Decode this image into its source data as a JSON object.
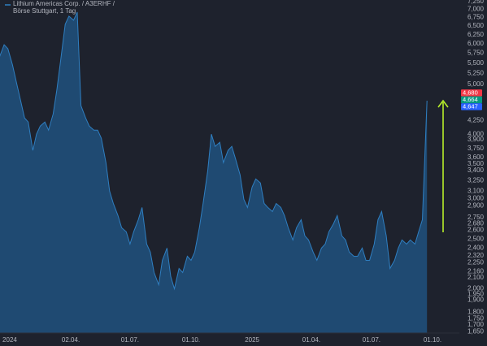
{
  "chart_data": {
    "type": "area",
    "title": "Lithium Americas Corp. / A3ERHF /",
    "subtitle": "Börse Stuttgart, 1 Tag",
    "log_scale": true,
    "grid": false,
    "color": "#2f7fc1",
    "fill_color": "#1f4a72",
    "x": [
      -11,
      -6,
      -2,
      3,
      7,
      11,
      16,
      20,
      25,
      29,
      33,
      38,
      42,
      47,
      51,
      55,
      60,
      64,
      69,
      73,
      77,
      82,
      86,
      91,
      95,
      99,
      104,
      108,
      112,
      117,
      121,
      126,
      130,
      134,
      139,
      143,
      148,
      152,
      156,
      161,
      165,
      170,
      174,
      178,
      183,
      187,
      192,
      196,
      200,
      205,
      209,
      214,
      218,
      222,
      227,
      231,
      236,
      240,
      244,
      249,
      253,
      257,
      262,
      266,
      271,
      275,
      279,
      284,
      288,
      293,
      297,
      301,
      306,
      310,
      315,
      319,
      323,
      328,
      332,
      337,
      341,
      345,
      350,
      354,
      359,
      363,
      367,
      372,
      376,
      381,
      385,
      389,
      394,
      398,
      402,
      407,
      411,
      416,
      420,
      424,
      429,
      433,
      438,
      442,
      446,
      451
    ],
    "values": [
      5656,
      5975,
      5867,
      5454,
      5070,
      4713,
      4302,
      4225,
      3719,
      4000,
      4148,
      4225,
      4073,
      4381,
      4889,
      5554,
      6546,
      6789,
      6666,
      6914,
      4544,
      4302,
      4148,
      4073,
      4073,
      3928,
      3521,
      3099,
      2932,
      2777,
      2629,
      2582,
      2444,
      2582,
      2726,
      2880,
      2444,
      2357,
      2151,
      2037,
      2272,
      2400,
      2113,
      2000,
      2191,
      2151,
      2314,
      2272,
      2357,
      2629,
      2932,
      3395,
      4000,
      3787,
      3857,
      3521,
      3719,
      3787,
      3586,
      3334,
      2988,
      2880,
      3156,
      3273,
      3214,
      2932,
      2880,
      2828,
      2932,
      2880,
      2777,
      2629,
      2489,
      2629,
      2726,
      2535,
      2489,
      2357,
      2272,
      2400,
      2444,
      2582,
      2677,
      2777,
      2535,
      2489,
      2357,
      2314,
      2314,
      2400,
      2272,
      2272,
      2444,
      2726,
      2828,
      2535,
      2191,
      2272,
      2400,
      2489,
      2444,
      2489,
      2444,
      2582,
      2726,
      4647
    ],
    "xlim": [
      -10.5,
      486
    ],
    "xticks": [
      {
        "value": 0,
        "label": "2024"
      },
      {
        "value": 66,
        "label": "02.04."
      },
      {
        "value": 130,
        "label": "01.07."
      },
      {
        "value": 196,
        "label": "01.10."
      },
      {
        "value": 262,
        "label": "2025"
      },
      {
        "value": 326,
        "label": "01.04."
      },
      {
        "value": 391,
        "label": "01.07."
      },
      {
        "value": 457,
        "label": "01.10."
      }
    ],
    "ylim": [
      1640,
      7300
    ],
    "yticks": [
      {
        "value": 7250,
        "label": "7,250"
      },
      {
        "value": 7000,
        "label": "7,000"
      },
      {
        "value": 6750,
        "label": "6,750"
      },
      {
        "value": 6500,
        "label": "6,500"
      },
      {
        "value": 6250,
        "label": "6,250"
      },
      {
        "value": 6000,
        "label": "6,000"
      },
      {
        "value": 5750,
        "label": "5,750"
      },
      {
        "value": 5500,
        "label": "5,500"
      },
      {
        "value": 5250,
        "label": "5,250"
      },
      {
        "value": 5000,
        "label": "5,000"
      },
      {
        "value": 4250,
        "label": "4,250"
      },
      {
        "value": 4000,
        "label": "4,000"
      },
      {
        "value": 3900,
        "label": "3,900"
      },
      {
        "value": 3750,
        "label": "3,750"
      },
      {
        "value": 3600,
        "label": "3,600"
      },
      {
        "value": 3500,
        "label": "3,500"
      },
      {
        "value": 3400,
        "label": "3,400"
      },
      {
        "value": 3250,
        "label": "3,250"
      },
      {
        "value": 3100,
        "label": "3,100"
      },
      {
        "value": 3000,
        "label": "3,000"
      },
      {
        "value": 2900,
        "label": "2,900"
      },
      {
        "value": 2750,
        "label": "2,750"
      },
      {
        "value": 2680,
        "label": "2,680"
      },
      {
        "value": 2600,
        "label": "2,600"
      },
      {
        "value": 2500,
        "label": "2,500"
      },
      {
        "value": 2400,
        "label": "2,400"
      },
      {
        "value": 2320,
        "label": "2,320"
      },
      {
        "value": 2250,
        "label": "2,250"
      },
      {
        "value": 2160,
        "label": "2,160"
      },
      {
        "value": 2100,
        "label": "2,100"
      },
      {
        "value": 2000,
        "label": "2,000"
      },
      {
        "value": 1950,
        "label": "1,950"
      },
      {
        "value": 1900,
        "label": "1,900"
      },
      {
        "value": 1800,
        "label": "1,800"
      },
      {
        "value": 1750,
        "label": "1,750"
      },
      {
        "value": 1700,
        "label": "1,700"
      },
      {
        "value": 1650,
        "label": "1,650"
      }
    ],
    "price_labels": [
      {
        "value": 4680,
        "label": "4,680",
        "color": "#f23645"
      },
      {
        "value": 4664,
        "label": "4,664",
        "color": "#089981"
      },
      {
        "value": 4647,
        "label": "4,647",
        "color": "#2962ff"
      }
    ]
  }
}
